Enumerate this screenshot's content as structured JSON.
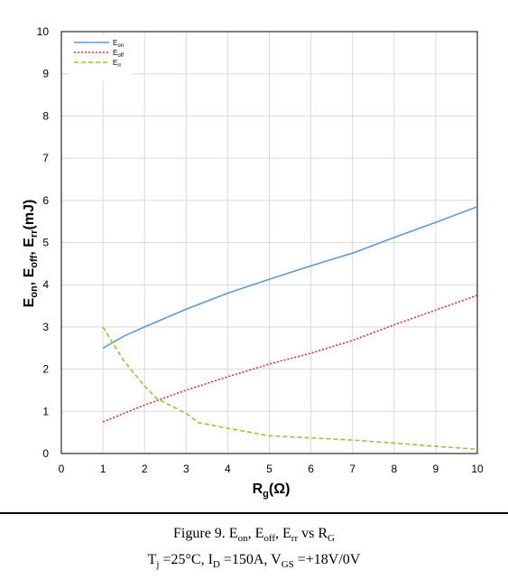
{
  "chart_data": {
    "type": "line",
    "xlim": [
      0,
      10
    ],
    "ylim": [
      0,
      10
    ],
    "x_ticks": [
      "0",
      "1",
      "2",
      "3",
      "4",
      "5",
      "6",
      "7",
      "8",
      "9",
      "10"
    ],
    "y_ticks": [
      "0",
      "1",
      "2",
      "3",
      "4",
      "5",
      "6",
      "7",
      "8",
      "9",
      "10"
    ],
    "xlabel": "Rg(Ω)",
    "ylabel": "Eon, Eoff, Err(mJ)",
    "grid": true,
    "legend_position": "top-left",
    "series": [
      {
        "name": "Eon",
        "color": "#5B9BD5",
        "dash": "solid",
        "x": [
          1,
          1.5,
          2,
          3,
          4,
          5,
          6,
          7,
          8,
          9,
          10
        ],
        "y": [
          2.5,
          2.78,
          3.0,
          3.42,
          3.8,
          4.13,
          4.45,
          4.75,
          5.12,
          5.48,
          5.85
        ]
      },
      {
        "name": "Eoff",
        "color": "#E0312F",
        "dash": "dotted",
        "x": [
          1,
          2,
          3,
          4,
          5,
          6,
          7,
          8,
          9,
          10
        ],
        "y": [
          0.75,
          1.15,
          1.5,
          1.82,
          2.12,
          2.38,
          2.68,
          3.05,
          3.4,
          3.75
        ]
      },
      {
        "name": "Err",
        "color": "#92C83E",
        "dash": "dashed",
        "x": [
          1,
          1.5,
          2,
          2.3,
          3,
          3.3,
          4,
          5,
          6,
          7,
          8,
          9,
          10
        ],
        "y": [
          3.0,
          2.2,
          1.6,
          1.3,
          0.95,
          0.73,
          0.6,
          0.42,
          0.37,
          0.32,
          0.25,
          0.17,
          0.1
        ]
      }
    ]
  },
  "legend": [
    {
      "base": "E",
      "sub": "on"
    },
    {
      "base": "E",
      "sub": "off"
    },
    {
      "base": "E",
      "sub": "rr"
    }
  ],
  "axis_titles": {
    "y_parts": [
      {
        "base": "E",
        "sub": "on"
      },
      {
        "sep": ", "
      },
      {
        "base": "E",
        "sub": "off"
      },
      {
        "sep": ", "
      },
      {
        "base": "E",
        "sub": "rr"
      },
      {
        "sep": "(mJ)"
      }
    ],
    "x_base": "R",
    "x_sub": "g",
    "x_rest": "(Ω)"
  },
  "caption": {
    "line1": [
      {
        "t": "Figure 9. E"
      },
      {
        "sub": "on"
      },
      {
        "t": ", E"
      },
      {
        "sub": "off"
      },
      {
        "t": ", E"
      },
      {
        "sub": "rr"
      },
      {
        "t": " vs R"
      },
      {
        "sub": "G"
      }
    ],
    "line2": [
      {
        "t": "T"
      },
      {
        "sub": "j"
      },
      {
        "t": " =25°C, I"
      },
      {
        "sub": "D"
      },
      {
        "t": " =150A, V"
      },
      {
        "sub": "GS"
      },
      {
        "t": " =+18V/0V"
      }
    ]
  }
}
